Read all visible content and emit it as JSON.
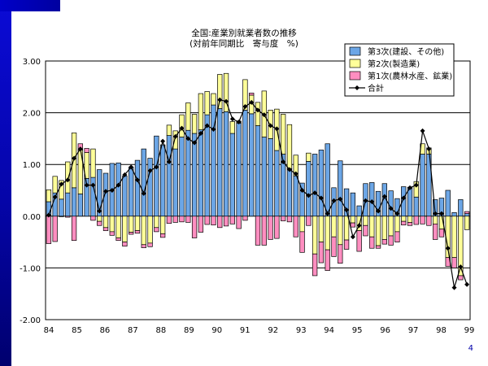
{
  "page_number": "4",
  "colors": {
    "tertiary": "#6ca6e6",
    "secondary": "#ffff99",
    "primary": "#ff8ec0",
    "total": "#000000",
    "band": "#0505a8"
  },
  "chart_data": {
    "type": "bar",
    "title": "全国:産業別就業者数の推移",
    "subtitle": "(対前年同期比　寄与度　%)",
    "xlabel": "",
    "ylabel": "",
    "ylim": [
      -2.0,
      3.0
    ],
    "yticks": [
      "3.00",
      "2.00",
      "1.00",
      "0.00",
      "-1.00",
      "-2.00"
    ],
    "xtick_labels": [
      "84",
      "85",
      "86",
      "87",
      "88",
      "89",
      "90",
      "91",
      "92",
      "93",
      "94",
      "95",
      "96",
      "97",
      "98",
      "99"
    ],
    "grid": true,
    "legend_position": "top-right",
    "stacked": true,
    "series": [
      {
        "name": "第3次(建設、その他)",
        "values": [
          0.28,
          0.45,
          0.33,
          0.45,
          0.55,
          0.43,
          0.73,
          0.75,
          0.9,
          0.83,
          1.02,
          1.03,
          0.78,
          0.95,
          1.08,
          1.3,
          1.12,
          1.55,
          1.38,
          1.56,
          1.3,
          1.53,
          1.66,
          1.6,
          1.67,
          1.96,
          2.15,
          2.08,
          2.02,
          1.6,
          1.8,
          2.05,
          1.98,
          1.75,
          1.53,
          1.5,
          1.27,
          1.2,
          0.92,
          0.78,
          0.64,
          1.06,
          1.2,
          1.28,
          1.4,
          0.55,
          1.07,
          0.53,
          0.45,
          0.2,
          0.63,
          0.65,
          0.48,
          0.63,
          0.49,
          0.34,
          0.57,
          0.56,
          0.37,
          1.2,
          1.2,
          0.32,
          0.35,
          0.5,
          0.07,
          0.32,
          0.05
        ]
      },
      {
        "name": "第2次(製造業)",
        "values": [
          0.23,
          0.32,
          0.36,
          0.6,
          1.06,
          0.85,
          0.5,
          0.55,
          -0.1,
          -0.22,
          -0.3,
          -0.42,
          -0.5,
          -0.31,
          -0.28,
          -0.55,
          -0.52,
          -0.22,
          -0.34,
          0.2,
          0.35,
          0.43,
          0.53,
          0.37,
          0.7,
          0.45,
          0.22,
          0.66,
          0.74,
          0.23,
          0.04,
          0.59,
          0.36,
          0.45,
          0.89,
          0.55,
          0.8,
          0.77,
          0.85,
          0.4,
          -0.3,
          0.16,
          -0.73,
          -0.5,
          -0.65,
          -0.4,
          -0.55,
          -0.46,
          -0.13,
          -0.28,
          -0.18,
          -0.4,
          -0.57,
          -0.45,
          -0.38,
          -0.3,
          -0.1,
          -0.12,
          0.3,
          0.2,
          0.12,
          -0.15,
          -0.25,
          -0.8,
          -0.8,
          -1.15,
          -0.26
        ]
      },
      {
        "name": "第1次(農林水産、鉱業)",
        "values": [
          -0.53,
          -0.49,
          -0.01,
          -0.02,
          -0.47,
          0.12,
          0.08,
          -0.08,
          -0.08,
          -0.06,
          -0.07,
          -0.05,
          -0.08,
          -0.04,
          -0.05,
          -0.06,
          -0.07,
          -0.08,
          -0.07,
          -0.14,
          -0.12,
          -0.11,
          -0.12,
          -0.42,
          -0.31,
          -0.16,
          -0.17,
          -0.22,
          -0.19,
          -0.15,
          -0.24,
          -0.08,
          0.04,
          -0.56,
          -0.56,
          -0.45,
          -0.43,
          -0.09,
          -0.11,
          -0.4,
          -0.4,
          -0.18,
          -0.42,
          -0.4,
          -0.4,
          -0.38,
          -0.36,
          -0.18,
          -0.08,
          -0.4,
          -0.2,
          -0.22,
          -0.05,
          -0.09,
          -0.18,
          -0.2,
          -0.07,
          -0.06,
          -0.16,
          -0.15,
          -0.18,
          -0.3,
          -0.15,
          -0.17,
          -0.2,
          -0.08,
          0.04
        ]
      },
      {
        "name": "合計",
        "type": "line",
        "values": [
          0.02,
          0.37,
          0.62,
          0.7,
          1.12,
          1.3,
          0.6,
          0.6,
          0.1,
          0.48,
          0.5,
          0.6,
          0.8,
          0.95,
          0.7,
          0.44,
          0.88,
          0.95,
          1.45,
          1.05,
          1.54,
          1.7,
          1.5,
          1.42,
          1.6,
          1.75,
          1.68,
          2.25,
          2.22,
          1.88,
          1.82,
          2.12,
          2.2,
          2.05,
          1.96,
          1.75,
          1.69,
          1.05,
          0.9,
          0.82,
          0.5,
          0.4,
          0.45,
          0.35,
          0.05,
          0.3,
          0.33,
          0.12,
          -0.4,
          -0.18,
          0.3,
          0.28,
          0.1,
          0.38,
          0.15,
          0.05,
          0.35,
          0.55,
          0.6,
          1.65,
          1.3,
          0.05,
          0.05,
          -0.62,
          -1.38,
          -0.98,
          -1.32
        ]
      }
    ]
  }
}
